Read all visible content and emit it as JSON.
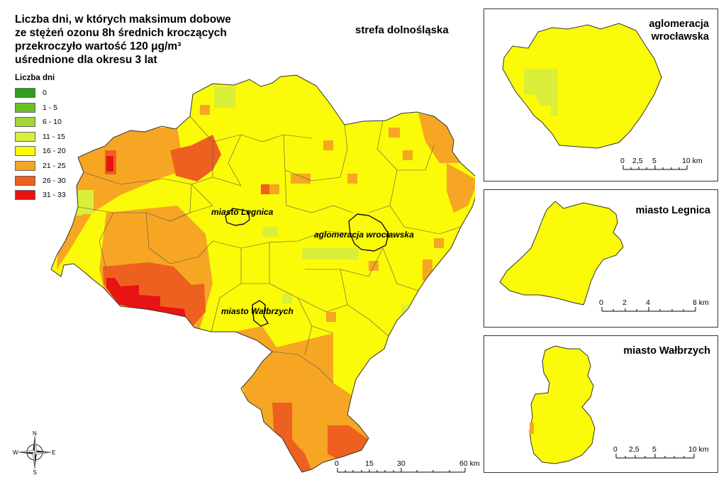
{
  "title": {
    "line1": "Liczba dni, w których maksimum dobowe",
    "line2": "ze stężeń ozonu 8h średnich kroczących",
    "line3": "przekroczyło wartość 120 μg/m³",
    "line4": "uśrednione dla okresu 3 lat"
  },
  "legend": {
    "title": "Liczba dni",
    "items": [
      {
        "label": "0",
        "color": "#2f9e1a"
      },
      {
        "label": "1 - 5",
        "color": "#6cbf25"
      },
      {
        "label": "6 - 10",
        "color": "#a4d534"
      },
      {
        "label": "11 - 15",
        "color": "#d9ef3a"
      },
      {
        "label": "16 - 20",
        "color": "#fbfa08"
      },
      {
        "label": "21 - 25",
        "color": "#f6a623"
      },
      {
        "label": "26 - 30",
        "color": "#ee6020"
      },
      {
        "label": "31 - 33",
        "color": "#e81313"
      }
    ]
  },
  "zone_title": "strefa dolnośląska",
  "map_labels": {
    "legnica": "miasto Legnica",
    "wroclaw": "aglomeracja wrocławska",
    "walbrzych": "miasto Wałbrzych"
  },
  "main_scale": {
    "ticks": [
      "0",
      "15",
      "30",
      "60 km"
    ]
  },
  "insets": {
    "wroclaw": {
      "title_line1": "aglomeracja",
      "title_line2": "wrocławska",
      "ticks": [
        "0",
        "2,5",
        "5",
        "10 km"
      ]
    },
    "legnica": {
      "title": "miasto Legnica",
      "ticks": [
        "0",
        "2",
        "4",
        "8 km"
      ]
    },
    "walbrzych": {
      "title": "miasto Wałbrzych",
      "ticks": [
        "0",
        "2,5",
        "5",
        "10 km"
      ]
    }
  },
  "compass": {
    "n": "N",
    "s": "S",
    "e": "E",
    "w": "W"
  }
}
